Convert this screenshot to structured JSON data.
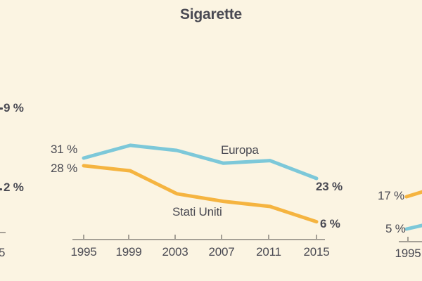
{
  "background": "#fbf4e2",
  "colors": {
    "europe_line": "#7cc8d9",
    "us_line": "#f5b440",
    "text": "#494952",
    "axis": "#a5a096"
  },
  "title": "Sigarette",
  "chart_data": [
    {
      "id": "left-chart-partial",
      "type": "line",
      "visibility": "cropped at left screen edge, only line end labels visible",
      "end_labels": [
        "9 %",
        "2 %"
      ],
      "x_tick_label_partial": "5"
    },
    {
      "id": "cigarettes",
      "type": "line",
      "title": "Sigarette",
      "categories": [
        "1995",
        "1999",
        "2003",
        "2007",
        "2011",
        "2015"
      ],
      "series": [
        {
          "name": "Europa",
          "color": "#7cc8d9",
          "values": [
            31,
            36,
            34,
            29,
            30,
            23
          ],
          "start_label": "31 %",
          "end_label": "23 %"
        },
        {
          "name": "Stati Uniti",
          "color": "#f5b440",
          "values": [
            28,
            26,
            17,
            14,
            12,
            6
          ],
          "start_label": "28 %",
          "end_label": "6 %"
        }
      ],
      "xlabel": "",
      "ylabel": "",
      "ylim": [
        0,
        40
      ],
      "grid": false,
      "legend": "inline series labels"
    },
    {
      "id": "right-chart-partial",
      "type": "line",
      "visibility": "cropped at right screen edge, only 1995 line starts visible",
      "start_labels": [
        "17 %",
        "5 %"
      ],
      "first_x_tick_label": "1995"
    }
  ]
}
